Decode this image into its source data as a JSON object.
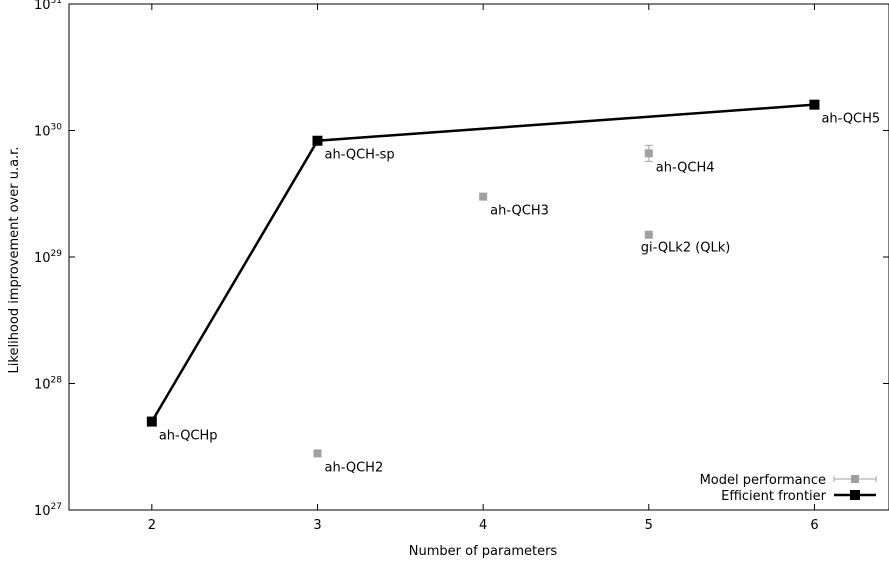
{
  "chart_data": {
    "type": "scatter",
    "xlabel": "Number of parameters",
    "ylabel": "Likelihood improvement over u.a.r.",
    "xlim": [
      1.5,
      6.45
    ],
    "ylim_log10": [
      27,
      31
    ],
    "y_scale": "log",
    "x_ticks": [
      "2",
      "3",
      "4",
      "5",
      "6"
    ],
    "y_ticks": [
      {
        "base": "10",
        "exp": "27"
      },
      {
        "base": "10",
        "exp": "28"
      },
      {
        "base": "10",
        "exp": "29"
      },
      {
        "base": "10",
        "exp": "30"
      },
      {
        "base": "10",
        "exp": "31"
      }
    ],
    "legend_position": "bottom-right",
    "series": [
      {
        "name": "Model performance",
        "color": "#a0a0a0",
        "points": [
          {
            "x": 2,
            "y": 5e+27,
            "label": "ah-QCHp"
          },
          {
            "x": 3,
            "y": 8.3e+29,
            "label": "ah-QCH-sp"
          },
          {
            "x": 3,
            "y": 2.8e+27,
            "label": "ah-QCH2"
          },
          {
            "x": 4,
            "y": 3e+29,
            "label": "ah-QCH3"
          },
          {
            "x": 5,
            "y": 6.6e+29,
            "label": "ah-QCH4"
          },
          {
            "x": 5,
            "y": 1.5e+29,
            "label": "gi-QLk2 (QLk)"
          },
          {
            "x": 6,
            "y": 1.6e+30,
            "label": "ah-QCH5"
          }
        ]
      },
      {
        "name": "Efficient frontier",
        "color": "#000000",
        "points": [
          {
            "x": 2,
            "y": 5e+27
          },
          {
            "x": 3,
            "y": 8.3e+29
          },
          {
            "x": 6,
            "y": 1.6e+30
          }
        ]
      }
    ]
  }
}
